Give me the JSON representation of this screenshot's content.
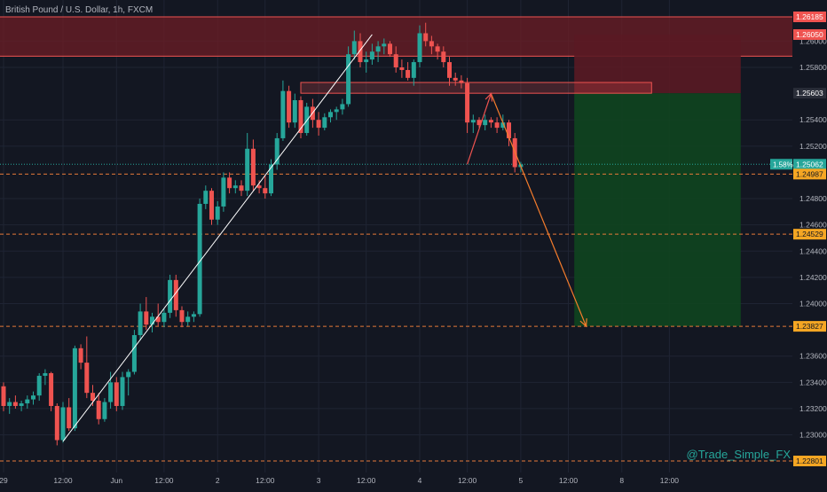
{
  "header": {
    "symbol_title": "British Pound / U.S. Dollar, 1h, FXCM"
  },
  "watermark": "@Trade_Simple_FX",
  "colors": {
    "background": "#131722",
    "up": "#26a69a",
    "down": "#ef5350",
    "grid": "#1f2433",
    "axis_text": "#b2b5be",
    "resistance_fill": "#6e1e26",
    "stop_zone": "#5a1a23",
    "target_zone": "#10451f",
    "projection_up": "#ef5350",
    "projection_down": "#f57c2c",
    "trendline": "#ffffff",
    "dashed_level": "#e57a3a",
    "price_tag_current": "#26a69a",
    "price_tag_level": "#f5a623",
    "price_tag_red": "#ef5350",
    "entry_box_border": "#ef5350"
  },
  "chart_data": {
    "type": "candlestick",
    "title": "British Pound / U.S. Dollar, 1h, FXCM",
    "ylim": [
      1.2272,
      1.2635
    ],
    "y_ticks": [
      "1.26000",
      "1.25800",
      "1.25400",
      "1.25200",
      "1.24800",
      "1.24600",
      "1.24400",
      "1.24200",
      "1.24000",
      "1.23600",
      "1.23400",
      "1.23200",
      "1.23000"
    ],
    "x_ticks": [
      {
        "label": "29",
        "idx": 0
      },
      {
        "label": "12:00",
        "idx": 10
      },
      {
        "label": "Jun",
        "idx": 19
      },
      {
        "label": "12:00",
        "idx": 27
      },
      {
        "label": "2",
        "idx": 36
      },
      {
        "label": "12:00",
        "idx": 44
      },
      {
        "label": "3",
        "idx": 53
      },
      {
        "label": "12:00",
        "idx": 61
      },
      {
        "label": "4",
        "idx": 70
      },
      {
        "label": "12:00",
        "idx": 78
      },
      {
        "label": "5",
        "idx": 87
      },
      {
        "label": "12:00",
        "idx": 95
      },
      {
        "label": "8",
        "idx": 104
      },
      {
        "label": "12:00",
        "idx": 112
      }
    ],
    "candles": [
      [
        1.2337,
        1.234,
        1.2318,
        1.2322
      ],
      [
        1.2322,
        1.2328,
        1.2316,
        1.2325
      ],
      [
        1.2325,
        1.233,
        1.232,
        1.2322
      ],
      [
        1.2322,
        1.2326,
        1.2318,
        1.2324
      ],
      [
        1.2324,
        1.233,
        1.232,
        1.2327
      ],
      [
        1.2327,
        1.2333,
        1.2323,
        1.233
      ],
      [
        1.233,
        1.2347,
        1.2326,
        1.2345
      ],
      [
        1.2345,
        1.235,
        1.2338,
        1.2347
      ],
      [
        1.2347,
        1.2348,
        1.2318,
        1.2322
      ],
      [
        1.2322,
        1.2324,
        1.2292,
        1.2296
      ],
      [
        1.2296,
        1.2325,
        1.2294,
        1.2321
      ],
      [
        1.2321,
        1.2328,
        1.2303,
        1.2305
      ],
      [
        1.2305,
        1.2368,
        1.2303,
        1.2366
      ],
      [
        1.2366,
        1.2369,
        1.235,
        1.2355
      ],
      [
        1.2355,
        1.2375,
        1.2328,
        1.2332
      ],
      [
        1.2332,
        1.2338,
        1.2322,
        1.2326
      ],
      [
        1.2326,
        1.2332,
        1.2308,
        1.2312
      ],
      [
        1.2312,
        1.2328,
        1.231,
        1.2325
      ],
      [
        1.2325,
        1.2348,
        1.232,
        1.234
      ],
      [
        1.234,
        1.2344,
        1.2318,
        1.2322
      ],
      [
        1.2322,
        1.2348,
        1.2319,
        1.2344
      ],
      [
        1.2344,
        1.235,
        1.233,
        1.2348
      ],
      [
        1.2348,
        1.238,
        1.2346,
        1.2376
      ],
      [
        1.2376,
        1.24,
        1.2372,
        1.2394
      ],
      [
        1.2394,
        1.2405,
        1.238,
        1.2384
      ],
      [
        1.2384,
        1.2393,
        1.2378,
        1.239
      ],
      [
        1.239,
        1.24,
        1.2383,
        1.2386
      ],
      [
        1.2386,
        1.2396,
        1.2382,
        1.2393
      ],
      [
        1.2393,
        1.2422,
        1.2389,
        1.2418
      ],
      [
        1.2418,
        1.2422,
        1.239,
        1.2395
      ],
      [
        1.2395,
        1.2398,
        1.2382,
        1.2386
      ],
      [
        1.2386,
        1.2394,
        1.2383,
        1.239
      ],
      [
        1.239,
        1.2394,
        1.2386,
        1.2392
      ],
      [
        1.2392,
        1.248,
        1.239,
        1.2476
      ],
      [
        1.2476,
        1.249,
        1.2472,
        1.2486
      ],
      [
        1.2486,
        1.2488,
        1.246,
        1.2464
      ],
      [
        1.2464,
        1.2478,
        1.246,
        1.2474
      ],
      [
        1.2474,
        1.25,
        1.247,
        1.2496
      ],
      [
        1.2496,
        1.25,
        1.2484,
        1.2488
      ],
      [
        1.2488,
        1.2494,
        1.2484,
        1.249
      ],
      [
        1.249,
        1.2494,
        1.2482,
        1.2486
      ],
      [
        1.2486,
        1.253,
        1.2482,
        1.2518
      ],
      [
        1.2518,
        1.2525,
        1.2486,
        1.249
      ],
      [
        1.249,
        1.2494,
        1.2484,
        1.2488
      ],
      [
        1.2488,
        1.2498,
        1.248,
        1.2484
      ],
      [
        1.2484,
        1.251,
        1.2482,
        1.2506
      ],
      [
        1.2506,
        1.253,
        1.2502,
        1.2526
      ],
      [
        1.2526,
        1.257,
        1.2524,
        1.2562
      ],
      [
        1.2562,
        1.2566,
        1.2534,
        1.2538
      ],
      [
        1.2538,
        1.256,
        1.2534,
        1.2555
      ],
      [
        1.2555,
        1.2558,
        1.2526,
        1.253
      ],
      [
        1.253,
        1.2553,
        1.2528,
        1.255
      ],
      [
        1.255,
        1.2556,
        1.2534,
        1.254
      ],
      [
        1.254,
        1.2546,
        1.2528,
        1.2534
      ],
      [
        1.2534,
        1.2545,
        1.2532,
        1.2542
      ],
      [
        1.2542,
        1.2548,
        1.2538,
        1.2546
      ],
      [
        1.2546,
        1.255,
        1.254,
        1.2548
      ],
      [
        1.2548,
        1.2556,
        1.2544,
        1.2552
      ],
      [
        1.2552,
        1.2596,
        1.255,
        1.259
      ],
      [
        1.259,
        1.2608,
        1.2586,
        1.26
      ],
      [
        1.26,
        1.2606,
        1.258,
        1.2584
      ],
      [
        1.2584,
        1.2592,
        1.2576,
        1.2586
      ],
      [
        1.2586,
        1.2598,
        1.2582,
        1.2592
      ],
      [
        1.2592,
        1.26,
        1.2584,
        1.2596
      ],
      [
        1.2596,
        1.2602,
        1.259,
        1.2598
      ],
      [
        1.2598,
        1.26,
        1.2588,
        1.259
      ],
      [
        1.259,
        1.2596,
        1.2576,
        1.258
      ],
      [
        1.258,
        1.2586,
        1.2572,
        1.2578
      ],
      [
        1.2578,
        1.2584,
        1.257,
        1.2572
      ],
      [
        1.2572,
        1.2586,
        1.2566,
        1.2584
      ],
      [
        1.2584,
        1.2612,
        1.258,
        1.2606
      ],
      [
        1.2606,
        1.2614,
        1.2596,
        1.26
      ],
      [
        1.26,
        1.2604,
        1.259,
        1.2596
      ],
      [
        1.2596,
        1.2598,
        1.2586,
        1.2592
      ],
      [
        1.2592,
        1.2596,
        1.258,
        1.2584
      ],
      [
        1.2584,
        1.2588,
        1.2566,
        1.2572
      ],
      [
        1.2572,
        1.2576,
        1.2566,
        1.257
      ],
      [
        1.257,
        1.2574,
        1.2564,
        1.2568
      ],
      [
        1.2568,
        1.2572,
        1.253,
        1.2538
      ],
      [
        1.2538,
        1.2544,
        1.253,
        1.254
      ],
      [
        1.254,
        1.2542,
        1.2534,
        1.2536
      ],
      [
        1.2536,
        1.2544,
        1.2532,
        1.254
      ],
      [
        1.254,
        1.2542,
        1.2534,
        1.2538
      ],
      [
        1.2538,
        1.2542,
        1.253,
        1.2534
      ],
      [
        1.2534,
        1.2544,
        1.2532,
        1.2538
      ],
      [
        1.2538,
        1.254,
        1.252,
        1.2526
      ],
      [
        1.2526,
        1.253,
        1.25,
        1.2504
      ],
      [
        1.2504,
        1.2508,
        1.25,
        1.2506
      ]
    ],
    "resistance_zone": [
      1.25885,
      1.26185
    ],
    "resistance_line_price": 1.26185,
    "resistance_lower_line_price": 1.25885,
    "entry_zone": [
      1.25603,
      1.25685
    ],
    "stop_zone": [
      1.25603,
      1.2605
    ],
    "target_zone": [
      1.23827,
      1.25603
    ],
    "current_price": 1.25062,
    "dashed_levels": [
      1.24987,
      1.24529,
      1.23827,
      1.22801
    ],
    "trendline": [
      {
        "idx": 10,
        "price": 1.2295
      },
      {
        "idx": 62,
        "price": 1.2605
      }
    ],
    "projection": [
      {
        "idx": 78,
        "price": 1.25062
      },
      {
        "idx": 82,
        "price": 1.256
      },
      {
        "idx": 98,
        "price": 1.23827
      }
    ],
    "price_tags": [
      {
        "text": "1.26185",
        "price": 1.26185,
        "kind": "red"
      },
      {
        "text": "1.26050",
        "price": 1.2605,
        "kind": "red"
      },
      {
        "text": "1.25603",
        "price": 1.25603,
        "kind": "dark"
      },
      {
        "text": "1.25062",
        "price": 1.25062,
        "kind": "current"
      },
      {
        "text": "1.24987",
        "price": 1.24987,
        "kind": "level"
      },
      {
        "text": "1.24529",
        "price": 1.24529,
        "kind": "level"
      },
      {
        "text": "1.23827",
        "price": 1.23827,
        "kind": "level"
      },
      {
        "text": "1.22801",
        "price": 1.22801,
        "kind": "level"
      }
    ],
    "percent_tag": "1.58%"
  }
}
